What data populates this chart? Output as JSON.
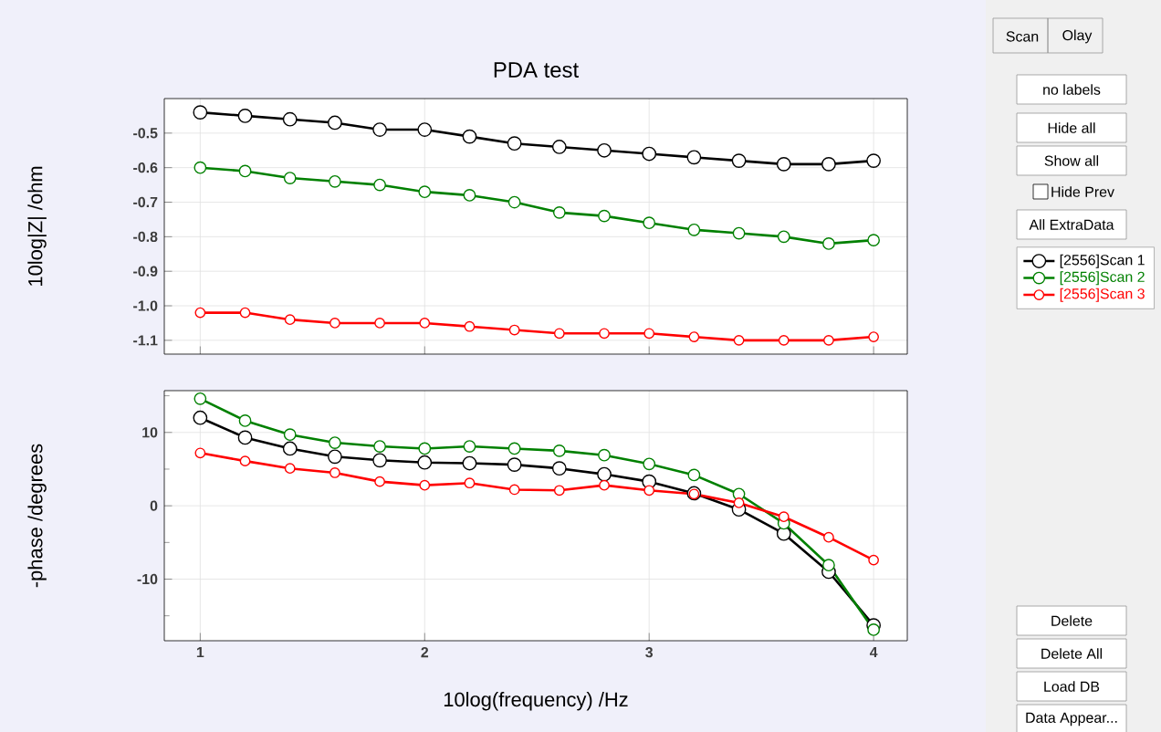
{
  "chart_data": [
    {
      "type": "line",
      "title": "PDA test",
      "ylabel": "10log|Z| /ohm",
      "x": [
        1.0,
        1.2,
        1.4,
        1.6,
        1.8,
        2.0,
        2.2,
        2.4,
        2.6,
        2.8,
        3.0,
        3.2,
        3.4,
        3.6,
        3.8,
        4.0
      ],
      "series": [
        {
          "name": "[2556]Scan 1",
          "color": "#000000",
          "values": [
            -0.44,
            -0.45,
            -0.46,
            -0.47,
            -0.49,
            -0.49,
            -0.51,
            -0.53,
            -0.54,
            -0.55,
            -0.56,
            -0.57,
            -0.58,
            -0.59,
            -0.59,
            -0.58
          ]
        },
        {
          "name": "[2556]Scan 2",
          "color": "#008000",
          "values": [
            -0.6,
            -0.61,
            -0.63,
            -0.64,
            -0.65,
            -0.67,
            -0.68,
            -0.7,
            -0.73,
            -0.74,
            -0.76,
            -0.78,
            -0.79,
            -0.8,
            -0.82,
            -0.81
          ]
        },
        {
          "name": "[2556]Scan 3",
          "color": "#ff0000",
          "values": [
            -1.02,
            -1.02,
            -1.04,
            -1.05,
            -1.05,
            -1.05,
            -1.06,
            -1.07,
            -1.08,
            -1.08,
            -1.08,
            -1.09,
            -1.1,
            -1.1,
            -1.1,
            -1.09
          ]
        }
      ],
      "xlim": [
        0.84,
        4.15
      ],
      "ylim": [
        -1.14,
        -0.4
      ],
      "xticks": [
        1,
        2,
        3,
        4
      ],
      "yticks": [
        -0.5,
        -0.6,
        -0.7,
        -0.8,
        -0.9,
        {
          "value": -1.0,
          "label": "-1.0"
        },
        -1.1
      ],
      "tick_labels": "y",
      "grid": true,
      "legend": "right",
      "marker": "circle",
      "line_style": "solid",
      "annotations": [
        "Scan",
        "Olay",
        "no labels",
        "Hide all",
        "Show all",
        "Hide Prev",
        "All ExtraData",
        "Delete",
        "Delete All",
        "Load DB",
        "Data Appear..."
      ]
    },
    {
      "type": "line",
      "xlabel": "10log(frequency) /Hz",
      "ylabel": "-phase /degrees",
      "x": [
        1.0,
        1.2,
        1.4,
        1.6,
        1.8,
        2.0,
        2.2,
        2.4,
        2.6,
        2.8,
        3.0,
        3.2,
        3.4,
        3.6,
        3.8,
        4.0
      ],
      "series": [
        {
          "color": "#000000",
          "values": [
            12.0,
            9.3,
            7.8,
            6.7,
            6.2,
            5.9,
            5.8,
            5.6,
            5.1,
            4.3,
            3.3,
            1.7,
            -0.5,
            -3.8,
            -9.0,
            -16.3
          ]
        },
        {
          "color": "#008000",
          "values": [
            14.6,
            11.6,
            9.7,
            8.6,
            8.1,
            7.8,
            8.1,
            7.8,
            7.5,
            6.9,
            5.7,
            4.2,
            1.6,
            -2.4,
            -8.1,
            -16.9
          ]
        },
        {
          "color": "#ff0000",
          "values": [
            7.2,
            6.1,
            5.1,
            4.5,
            3.3,
            2.8,
            3.1,
            2.2,
            2.1,
            2.8,
            2.1,
            1.6,
            0.4,
            -1.5,
            -4.3,
            -7.4
          ]
        }
      ],
      "xlim": [
        0.84,
        4.15
      ],
      "ylim": [
        -18.4,
        15.7
      ],
      "xticks": [
        1,
        2,
        3,
        4
      ],
      "yticks": [
        {
          "value": 15,
          "label": null
        },
        10,
        {
          "value": 5,
          "label": null
        },
        0,
        {
          "value": -5,
          "label": null
        },
        -10,
        {
          "value": -15,
          "label": null
        }
      ],
      "grid": true,
      "marker": "circle",
      "line_style": "solid"
    }
  ]
}
